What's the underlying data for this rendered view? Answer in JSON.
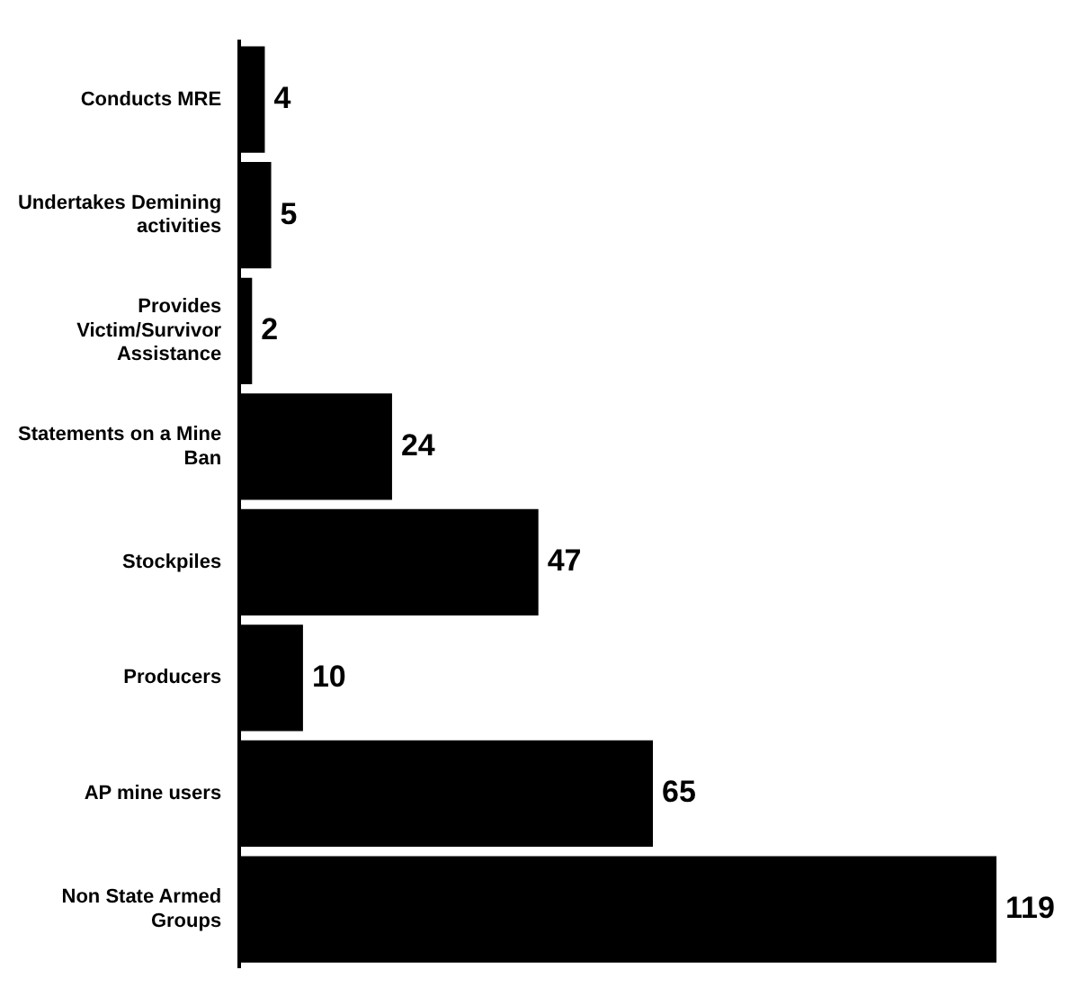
{
  "chart_data": {
    "type": "bar",
    "orientation": "horizontal",
    "categories": [
      "Conducts MRE",
      "Undertakes Demining activities",
      "Provides Victim/Survivor Assistance",
      "Statements on a Mine Ban",
      "Stockpiles",
      "Producers",
      "AP mine users",
      "Non State Armed Groups"
    ],
    "values": [
      4,
      5,
      2,
      24,
      47,
      10,
      65,
      119
    ],
    "color": "#000000",
    "data_labels": true,
    "legend": false
  }
}
